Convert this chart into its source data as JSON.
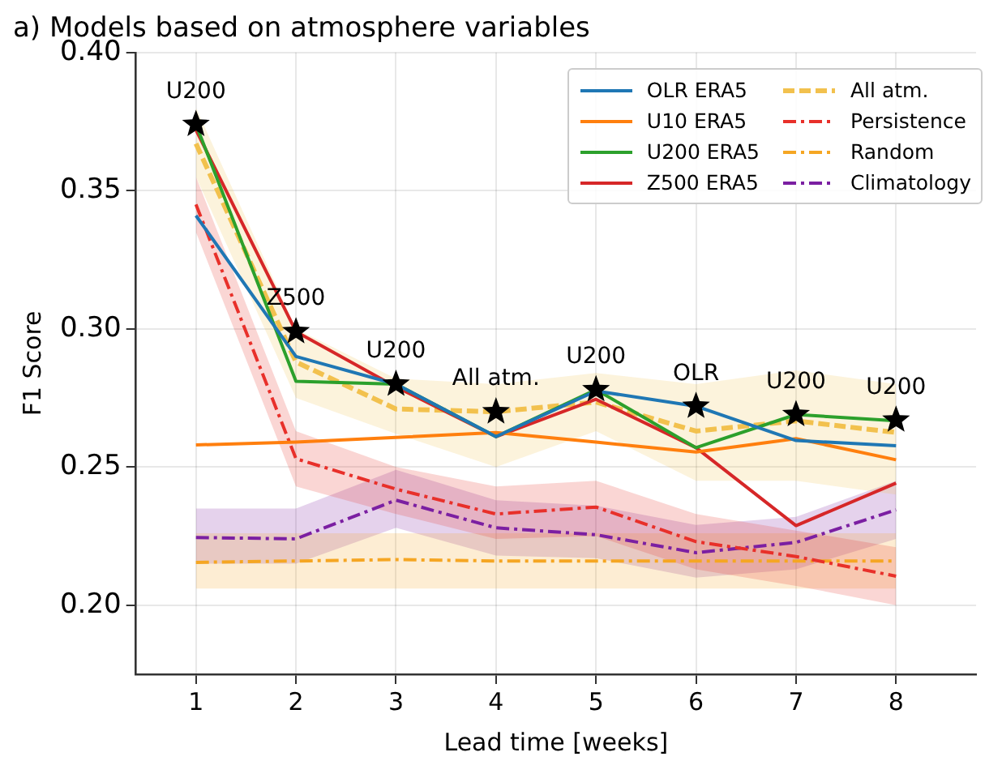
{
  "chart_data": {
    "type": "line",
    "title": "a) Models based on atmosphere variables",
    "xlabel": "Lead time [weeks]",
    "ylabel": "F1 Score",
    "x": [
      1,
      2,
      3,
      4,
      5,
      6,
      7,
      8
    ],
    "xlim": [
      0.4,
      8.8
    ],
    "xticks": [
      1,
      2,
      3,
      4,
      5,
      6,
      7,
      8
    ],
    "ylim": [
      0.175,
      0.4
    ],
    "yticks": [
      {
        "value": 0.2,
        "label": "0.20"
      },
      {
        "value": 0.25,
        "label": "0.25"
      },
      {
        "value": 0.3,
        "label": "0.30"
      },
      {
        "value": 0.35,
        "label": "0.35"
      },
      {
        "value": 0.4,
        "label": "0.40"
      }
    ],
    "grid": true,
    "legend": "top right",
    "marker": "none",
    "series": [
      {
        "name": "OLR ERA5",
        "color": "#1f77b4",
        "line_style": "solid",
        "values": [
          0.341,
          0.29,
          0.28,
          0.261,
          0.2775,
          0.272,
          0.2596,
          0.2577
        ]
      },
      {
        "name": "U10 ERA5",
        "color": "#ff7f0e",
        "line_style": "solid",
        "values": [
          0.258,
          0.259,
          0.2607,
          0.2625,
          0.259,
          0.2554,
          0.2603,
          0.2526
        ]
      },
      {
        "name": "U200 ERA5",
        "color": "#2ca02c",
        "line_style": "solid",
        "values": [
          0.374,
          0.281,
          0.28,
          0.261,
          0.278,
          0.257,
          0.269,
          0.2667
        ]
      },
      {
        "name": "Z500 ERA5",
        "color": "#d62728",
        "line_style": "solid",
        "values": [
          0.372,
          0.299,
          0.279,
          0.261,
          0.2745,
          0.257,
          0.2288,
          0.2442
        ]
      },
      {
        "name": "All atm.",
        "color": "#f2c14e",
        "line_style": "dashed",
        "values": [
          0.367,
          0.288,
          0.271,
          0.27,
          0.2735,
          0.263,
          0.2667,
          0.2625
        ],
        "lower": [
          0.355,
          0.275,
          0.262,
          0.25,
          0.263,
          0.245,
          0.245,
          0.24
        ],
        "upper": [
          0.38,
          0.3,
          0.282,
          0.28,
          0.284,
          0.28,
          0.285,
          0.28
        ]
      },
      {
        "name": "Persistence",
        "color": "#e8302a",
        "line_style": "dashdot",
        "values": [
          0.345,
          0.253,
          0.242,
          0.233,
          0.2355,
          0.223,
          0.2176,
          0.2105
        ],
        "lower": [
          0.335,
          0.243,
          0.233,
          0.224,
          0.225,
          0.213,
          0.207,
          0.2
        ],
        "upper": [
          0.355,
          0.263,
          0.25,
          0.243,
          0.245,
          0.233,
          0.227,
          0.221
        ]
      },
      {
        "name": "Random",
        "color": "#f5a623",
        "line_style": "dashdot",
        "values": [
          0.2155,
          0.216,
          0.2165,
          0.216,
          0.216,
          0.216,
          0.216,
          0.216
        ],
        "lower": [
          0.206,
          0.206,
          0.206,
          0.206,
          0.206,
          0.206,
          0.206,
          0.206
        ],
        "upper": [
          0.226,
          0.226,
          0.226,
          0.226,
          0.226,
          0.226,
          0.226,
          0.226
        ]
      },
      {
        "name": "Climatology",
        "color": "#7b1fa2",
        "line_style": "dashdot",
        "values": [
          0.2245,
          0.224,
          0.238,
          0.228,
          0.2255,
          0.219,
          0.2227,
          0.2345
        ],
        "lower": [
          0.215,
          0.215,
          0.228,
          0.218,
          0.217,
          0.21,
          0.213,
          0.224
        ],
        "upper": [
          0.235,
          0.235,
          0.249,
          0.238,
          0.236,
          0.229,
          0.232,
          0.245
        ]
      },
      {
        "type": "scatter",
        "marker": "star",
        "color": "#000000",
        "values": [
          0.374,
          0.299,
          0.28,
          0.27,
          0.278,
          0.272,
          0.269,
          0.267
        ]
      }
    ],
    "annotations": [
      {
        "text": "U200",
        "x": 1,
        "y": 0.374
      },
      {
        "text": "Z500",
        "x": 2,
        "y": 0.299
      },
      {
        "text": "U200",
        "x": 3,
        "y": 0.28
      },
      {
        "text": "All atm.",
        "x": 4,
        "y": 0.27
      },
      {
        "text": "U200",
        "x": 5,
        "y": 0.278
      },
      {
        "text": "OLR",
        "x": 6,
        "y": 0.272
      },
      {
        "text": "U200",
        "x": 7,
        "y": 0.269
      },
      {
        "text": "U200",
        "x": 8,
        "y": 0.267
      }
    ]
  }
}
